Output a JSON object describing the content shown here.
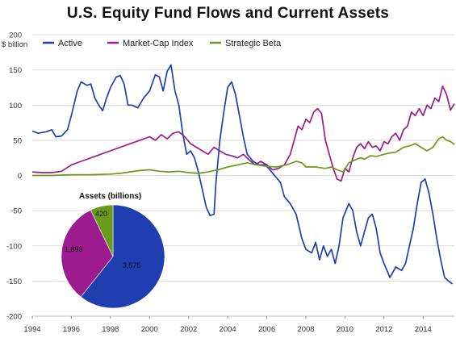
{
  "chart_data": [
    {
      "type": "line",
      "title": "U.S. Equity Fund Flows and Current Assets",
      "ylabel": "$ billion",
      "xlabel": "",
      "xlim": [
        1994,
        2015.6
      ],
      "ylim": [
        -200,
        200
      ],
      "x_ticks": [
        "1994",
        "1996",
        "1998",
        "2000",
        "2002",
        "2004",
        "2006",
        "2008",
        "2010",
        "2012",
        "2014"
      ],
      "y_ticks": [
        "200",
        "150",
        "100",
        "50",
        "0",
        "-50",
        "-100",
        "-150",
        "-200"
      ],
      "grid": "horizontal",
      "legend": "top",
      "series": [
        {
          "name": "Active",
          "color": "#1f3fb0",
          "points": [
            [
              1994.0,
              63
            ],
            [
              1994.3,
              60
            ],
            [
              1994.7,
              62
            ],
            [
              1995.0,
              65
            ],
            [
              1995.2,
              55
            ],
            [
              1995.5,
              56
            ],
            [
              1995.8,
              65
            ],
            [
              1996.0,
              85
            ],
            [
              1996.3,
              120
            ],
            [
              1996.5,
              133
            ],
            [
              1996.8,
              128
            ],
            [
              1997.0,
              130
            ],
            [
              1997.2,
              110
            ],
            [
              1997.4,
              100
            ],
            [
              1997.6,
              92
            ],
            [
              1997.8,
              110
            ],
            [
              1998.0,
              125
            ],
            [
              1998.3,
              140
            ],
            [
              1998.5,
              142
            ],
            [
              1998.7,
              130
            ],
            [
              1998.9,
              100
            ],
            [
              1999.1,
              100
            ],
            [
              1999.4,
              96
            ],
            [
              1999.7,
              110
            ],
            [
              2000.0,
              120
            ],
            [
              2000.3,
              143
            ],
            [
              2000.5,
              140
            ],
            [
              2000.7,
              120
            ],
            [
              2000.9,
              148
            ],
            [
              2001.1,
              157
            ],
            [
              2001.3,
              120
            ],
            [
              2001.5,
              100
            ],
            [
              2001.7,
              60
            ],
            [
              2001.9,
              30
            ],
            [
              2002.1,
              35
            ],
            [
              2002.3,
              25
            ],
            [
              2002.5,
              5
            ],
            [
              2002.7,
              -20
            ],
            [
              2002.9,
              -45
            ],
            [
              2003.1,
              -57
            ],
            [
              2003.3,
              -55
            ],
            [
              2003.4,
              -10
            ],
            [
              2003.6,
              50
            ],
            [
              2003.8,
              90
            ],
            [
              2004.0,
              125
            ],
            [
              2004.2,
              133
            ],
            [
              2004.4,
              115
            ],
            [
              2004.6,
              85
            ],
            [
              2004.8,
              55
            ],
            [
              2005.0,
              30
            ],
            [
              2005.3,
              20
            ],
            [
              2005.6,
              15
            ],
            [
              2005.9,
              15
            ],
            [
              2006.1,
              10
            ],
            [
              2006.4,
              0
            ],
            [
              2006.7,
              -10
            ],
            [
              2006.9,
              -30
            ],
            [
              2007.2,
              -40
            ],
            [
              2007.5,
              -55
            ],
            [
              2007.8,
              -90
            ],
            [
              2008.0,
              -105
            ],
            [
              2008.3,
              -110
            ],
            [
              2008.5,
              -95
            ],
            [
              2008.7,
              -120
            ],
            [
              2008.9,
              -100
            ],
            [
              2009.1,
              -115
            ],
            [
              2009.3,
              -105
            ],
            [
              2009.5,
              -125
            ],
            [
              2009.7,
              -100
            ],
            [
              2009.9,
              -60
            ],
            [
              2010.2,
              -40
            ],
            [
              2010.4,
              -50
            ],
            [
              2010.6,
              -80
            ],
            [
              2010.8,
              -100
            ],
            [
              2011.0,
              -80
            ],
            [
              2011.2,
              -60
            ],
            [
              2011.4,
              -55
            ],
            [
              2011.6,
              -75
            ],
            [
              2011.8,
              -110
            ],
            [
              2012.0,
              -125
            ],
            [
              2012.3,
              -145
            ],
            [
              2012.6,
              -130
            ],
            [
              2012.9,
              -135
            ],
            [
              2013.1,
              -125
            ],
            [
              2013.3,
              -100
            ],
            [
              2013.5,
              -75
            ],
            [
              2013.7,
              -40
            ],
            [
              2013.9,
              -10
            ],
            [
              2014.1,
              -5
            ],
            [
              2014.3,
              -25
            ],
            [
              2014.5,
              -55
            ],
            [
              2014.7,
              -90
            ],
            [
              2014.9,
              -120
            ],
            [
              2015.1,
              -145
            ],
            [
              2015.3,
              -150
            ],
            [
              2015.5,
              -154
            ]
          ]
        },
        {
          "name": "Market-Cap Index",
          "color": "#9c1b8e",
          "points": [
            [
              1994.0,
              5
            ],
            [
              1994.5,
              4
            ],
            [
              1995.0,
              4
            ],
            [
              1995.5,
              6
            ],
            [
              1996.0,
              15
            ],
            [
              1996.5,
              20
            ],
            [
              1997.0,
              25
            ],
            [
              1997.5,
              30
            ],
            [
              1998.0,
              35
            ],
            [
              1998.5,
              40
            ],
            [
              1999.0,
              45
            ],
            [
              1999.5,
              50
            ],
            [
              2000.0,
              55
            ],
            [
              2000.3,
              50
            ],
            [
              2000.6,
              58
            ],
            [
              2000.9,
              52
            ],
            [
              2001.2,
              60
            ],
            [
              2001.5,
              62
            ],
            [
              2001.8,
              55
            ],
            [
              2002.1,
              45
            ],
            [
              2002.4,
              40
            ],
            [
              2002.7,
              35
            ],
            [
              2003.0,
              30
            ],
            [
              2003.3,
              40
            ],
            [
              2003.6,
              35
            ],
            [
              2003.9,
              30
            ],
            [
              2004.2,
              28
            ],
            [
              2004.5,
              25
            ],
            [
              2004.8,
              30
            ],
            [
              2005.1,
              22
            ],
            [
              2005.4,
              15
            ],
            [
              2005.7,
              20
            ],
            [
              2006.0,
              15
            ],
            [
              2006.3,
              8
            ],
            [
              2006.6,
              10
            ],
            [
              2006.9,
              15
            ],
            [
              2007.2,
              30
            ],
            [
              2007.4,
              50
            ],
            [
              2007.6,
              70
            ],
            [
              2007.8,
              65
            ],
            [
              2008.0,
              80
            ],
            [
              2008.2,
              75
            ],
            [
              2008.4,
              90
            ],
            [
              2008.6,
              95
            ],
            [
              2008.8,
              88
            ],
            [
              2009.0,
              50
            ],
            [
              2009.2,
              30
            ],
            [
              2009.4,
              10
            ],
            [
              2009.6,
              -5
            ],
            [
              2009.8,
              -8
            ],
            [
              2010.0,
              10
            ],
            [
              2010.2,
              5
            ],
            [
              2010.4,
              25
            ],
            [
              2010.6,
              40
            ],
            [
              2010.8,
              45
            ],
            [
              2011.0,
              38
            ],
            [
              2011.2,
              48
            ],
            [
              2011.4,
              40
            ],
            [
              2011.6,
              42
            ],
            [
              2011.8,
              35
            ],
            [
              2012.0,
              48
            ],
            [
              2012.2,
              45
            ],
            [
              2012.4,
              55
            ],
            [
              2012.6,
              60
            ],
            [
              2012.8,
              50
            ],
            [
              2013.0,
              65
            ],
            [
              2013.2,
              70
            ],
            [
              2013.4,
              90
            ],
            [
              2013.6,
              85
            ],
            [
              2013.8,
              95
            ],
            [
              2014.0,
              85
            ],
            [
              2014.2,
              100
            ],
            [
              2014.4,
              95
            ],
            [
              2014.6,
              110
            ],
            [
              2014.8,
              105
            ],
            [
              2015.0,
              127
            ],
            [
              2015.2,
              115
            ],
            [
              2015.4,
              93
            ],
            [
              2015.6,
              102
            ]
          ]
        },
        {
          "name": "Strategic Beta",
          "color": "#6a9a1a",
          "points": [
            [
              1994.0,
              0
            ],
            [
              1995.0,
              0
            ],
            [
              1996.0,
              1
            ],
            [
              1997.0,
              1
            ],
            [
              1998.0,
              2
            ],
            [
              1998.5,
              3
            ],
            [
              1999.0,
              5
            ],
            [
              1999.5,
              7
            ],
            [
              2000.0,
              8
            ],
            [
              2000.5,
              6
            ],
            [
              2001.0,
              5
            ],
            [
              2001.5,
              6
            ],
            [
              2002.0,
              4
            ],
            [
              2002.5,
              3
            ],
            [
              2003.0,
              5
            ],
            [
              2003.5,
              8
            ],
            [
              2004.0,
              12
            ],
            [
              2004.5,
              15
            ],
            [
              2005.0,
              18
            ],
            [
              2005.5,
              15
            ],
            [
              2006.0,
              13
            ],
            [
              2006.5,
              12
            ],
            [
              2007.0,
              15
            ],
            [
              2007.5,
              20
            ],
            [
              2007.8,
              18
            ],
            [
              2008.0,
              12
            ],
            [
              2008.5,
              12
            ],
            [
              2009.0,
              10
            ],
            [
              2009.3,
              12
            ],
            [
              2009.6,
              8
            ],
            [
              2009.9,
              5
            ],
            [
              2010.2,
              18
            ],
            [
              2010.5,
              22
            ],
            [
              2010.8,
              25
            ],
            [
              2011.0,
              23
            ],
            [
              2011.3,
              28
            ],
            [
              2011.6,
              27
            ],
            [
              2012.0,
              30
            ],
            [
              2012.3,
              32
            ],
            [
              2012.6,
              33
            ],
            [
              2013.0,
              40
            ],
            [
              2013.3,
              42
            ],
            [
              2013.6,
              45
            ],
            [
              2013.9,
              40
            ],
            [
              2014.2,
              35
            ],
            [
              2014.5,
              40
            ],
            [
              2014.8,
              52
            ],
            [
              2015.0,
              55
            ],
            [
              2015.2,
              50
            ],
            [
              2015.4,
              48
            ],
            [
              2015.6,
              44
            ]
          ]
        }
      ]
    },
    {
      "type": "pie",
      "title": "Assets  (billions)",
      "slices": [
        {
          "label": "3,575",
          "value": 3575,
          "color": "#1f3fb0"
        },
        {
          "label": "1,893",
          "value": 1893,
          "color": "#9c1b8e"
        },
        {
          "label": "420",
          "value": 420,
          "color": "#6a9a1a"
        }
      ]
    }
  ]
}
